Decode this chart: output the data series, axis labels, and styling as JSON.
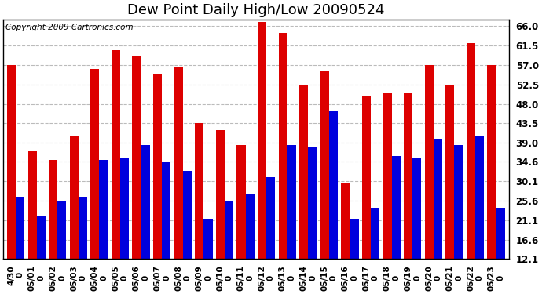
{
  "title": "Dew Point Daily High/Low 20090524",
  "copyright": "Copyright 2009 Cartronics.com",
  "dates": [
    "04/30\n05/\n0",
    "05/01\n05/\n0",
    "05/02\n05/\n0",
    "05/03\n05/\n0",
    "05/04\n05/\n0",
    "05/05\n05/\n0",
    "05/06\n05/\n0",
    "05/07\n05/\n0",
    "05/08\n05/\n0",
    "05/09\n05/\n0",
    "05/10\n05/\n0",
    "05/11\n05/\n0",
    "05/12\n05/\n0",
    "05/13\n05/\n0",
    "05/14\n05/\n0",
    "05/15\n05/\n0",
    "05/16\n05/\n0",
    "05/17\n05/\n0",
    "05/18\n05/\n0",
    "05/19\n05/\n0",
    "05/20\n05/\n0",
    "05/21\n05/\n0",
    "05/22\n05/\n0",
    "05/23\n05/\n0"
  ],
  "xlabels": [
    "4/30\n0",
    "05/01\n0",
    "05/02\n0",
    "05/03\n0",
    "05/04\n0",
    "05/05\n0",
    "05/06\n0",
    "05/07\n0",
    "05/08\n0",
    "05/09\n0",
    "05/10\n0",
    "05/11\n0",
    "05/12\n0",
    "05/13\n0",
    "05/14\n0",
    "05/15\n0",
    "05/16\n0",
    "05/17\n0",
    "05/18\n0",
    "05/19\n0",
    "05/20\n0",
    "05/21\n0",
    "05/22\n0",
    "05/23\n0"
  ],
  "highs": [
    57.0,
    37.0,
    35.0,
    40.5,
    56.0,
    60.5,
    59.0,
    55.0,
    56.5,
    43.5,
    42.0,
    38.5,
    67.0,
    64.5,
    52.5,
    55.5,
    29.5,
    50.0,
    50.5,
    50.5,
    57.0,
    52.5,
    62.0,
    57.0
  ],
  "lows": [
    26.5,
    22.0,
    25.5,
    26.5,
    35.0,
    35.5,
    38.5,
    34.5,
    32.5,
    21.5,
    25.5,
    27.0,
    31.0,
    38.5,
    38.0,
    46.5,
    21.5,
    24.0,
    36.0,
    35.5,
    40.0,
    38.5,
    40.5,
    24.0
  ],
  "high_color": "#dd0000",
  "low_color": "#0000dd",
  "background_color": "#ffffff",
  "plot_background": "#ffffff",
  "grid_color": "#bbbbbb",
  "yticks": [
    12.1,
    16.6,
    21.1,
    25.6,
    30.1,
    34.6,
    39.0,
    43.5,
    48.0,
    52.5,
    57.0,
    61.5,
    66.0
  ],
  "ylim": [
    12.1,
    67.5
  ],
  "ybase": 12.1,
  "title_fontsize": 13,
  "copyright_fontsize": 7.5,
  "bar_width": 0.42,
  "figsize": [
    6.9,
    3.75
  ],
  "dpi": 100
}
